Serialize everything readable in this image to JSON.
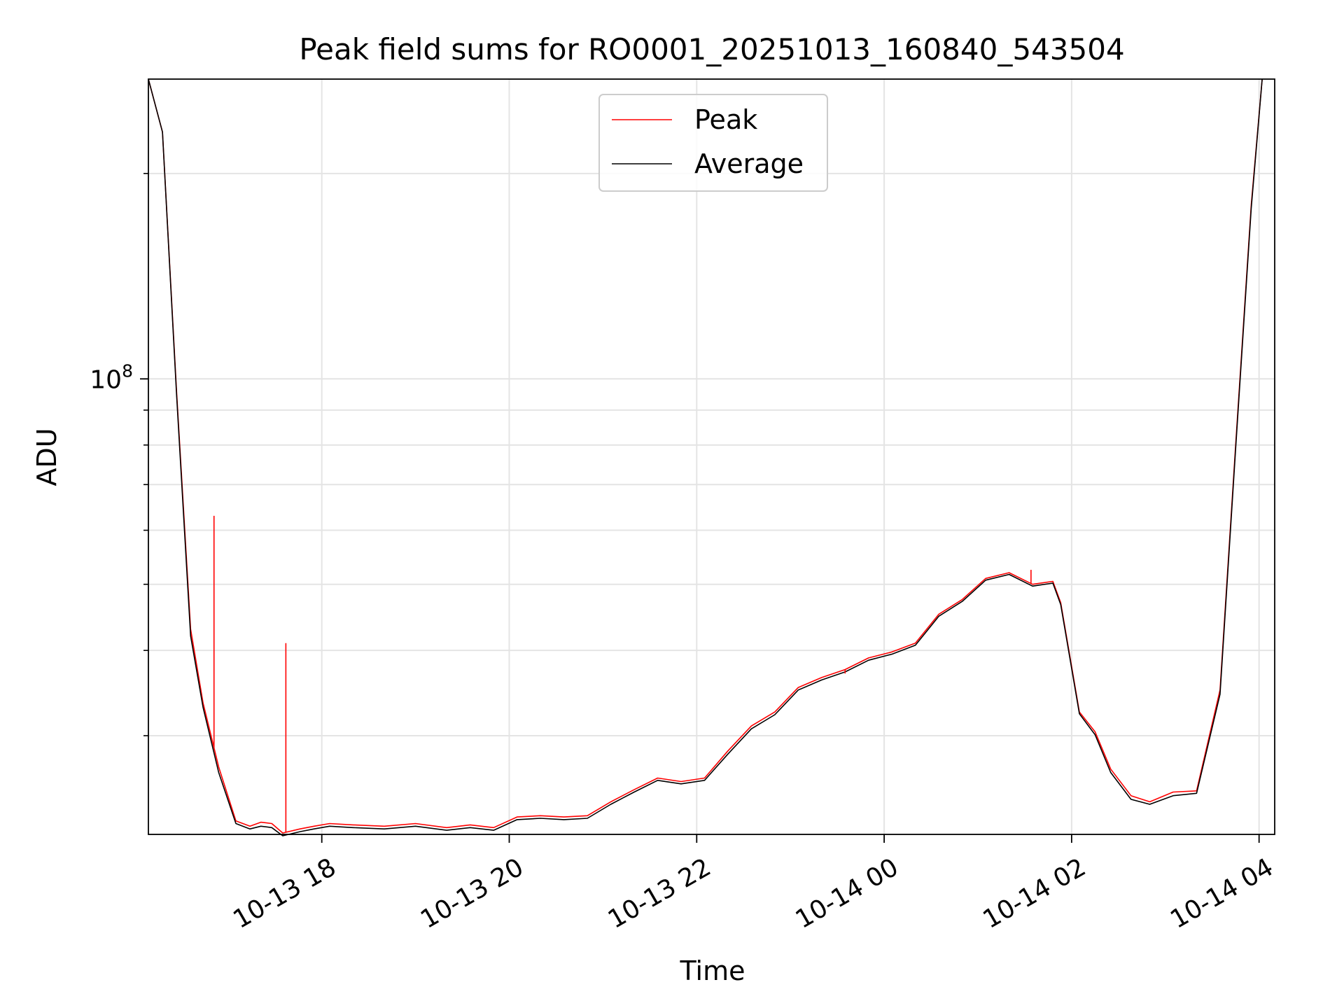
{
  "chart_data": {
    "type": "line",
    "title": "Peak field sums for RO0001_20251013_160840_543504",
    "xlabel": "Time",
    "ylabel": "ADU",
    "yscale": "log",
    "xlim": [
      "2025-10-13 16:09",
      "2025-10-14 04:10"
    ],
    "ylim": [
      21500000,
      275000000
    ],
    "x_ticks": [
      {
        "value": "2025-10-13 18:00",
        "label": "10-13 18"
      },
      {
        "value": "2025-10-13 20:00",
        "label": "10-13 20"
      },
      {
        "value": "2025-10-13 22:00",
        "label": "10-13 22"
      },
      {
        "value": "2025-10-14 00:00",
        "label": "10-14 00"
      },
      {
        "value": "2025-10-14 02:00",
        "label": "10-14 02"
      },
      {
        "value": "2025-10-14 04:00",
        "label": "10-14 04"
      }
    ],
    "y_ticks": [
      {
        "value": 100000000,
        "base": "10",
        "exponent": "8"
      }
    ],
    "grid": true,
    "legend_position": "top-center",
    "series": [
      {
        "name": "Peak",
        "color": "#ff0000",
        "x": [
          "2025-10-13 16:09",
          "2025-10-13 16:18",
          "2025-10-13 16:27",
          "2025-10-13 16:36",
          "2025-10-13 16:44",
          "2025-10-13 16:54",
          "2025-10-13 17:05",
          "2025-10-13 17:14",
          "2025-10-13 17:21",
          "2025-10-13 17:28",
          "2025-10-13 17:35",
          "2025-10-13 17:46",
          "2025-10-13 17:55",
          "2025-10-13 18:05",
          "2025-10-13 18:20",
          "2025-10-13 18:40",
          "2025-10-13 19:00",
          "2025-10-13 19:20",
          "2025-10-13 19:35",
          "2025-10-13 19:50",
          "2025-10-13 20:05",
          "2025-10-13 20:20",
          "2025-10-13 20:35",
          "2025-10-13 20:50",
          "2025-10-13 21:05",
          "2025-10-13 21:20",
          "2025-10-13 21:35",
          "2025-10-13 21:50",
          "2025-10-13 22:05",
          "2025-10-13 22:20",
          "2025-10-13 22:35",
          "2025-10-13 22:50",
          "2025-10-13 23:05",
          "2025-10-13 23:20",
          "2025-10-13 23:35",
          "2025-10-13 23:50",
          "2025-10-14 00:05",
          "2025-10-14 00:20",
          "2025-10-14 00:35",
          "2025-10-14 00:50",
          "2025-10-14 01:05",
          "2025-10-14 01:20",
          "2025-10-14 01:35",
          "2025-10-14 01:48",
          "2025-10-14 01:53",
          "2025-10-14 02:05",
          "2025-10-14 02:15",
          "2025-10-14 02:25",
          "2025-10-14 02:38",
          "2025-10-14 02:50",
          "2025-10-14 03:05",
          "2025-10-14 03:20",
          "2025-10-14 03:35",
          "2025-10-14 03:45",
          "2025-10-14 03:55",
          "2025-10-14 04:02"
        ],
        "y": [
          275000000,
          230000000,
          96000000,
          43000000,
          33500000,
          27000000,
          22500000,
          22100000,
          22400000,
          22300000,
          21600000,
          21900000,
          22100000,
          22300000,
          22200000,
          22100000,
          22300000,
          22000000,
          22200000,
          22000000,
          22800000,
          22900000,
          22800000,
          22900000,
          24000000,
          25000000,
          26000000,
          25700000,
          26000000,
          28500000,
          31000000,
          32500000,
          35300000,
          36500000,
          37500000,
          39000000,
          39800000,
          41000000,
          45200000,
          47500000,
          51000000,
          52000000,
          50000000,
          50500000,
          47000000,
          32500000,
          30400000,
          26800000,
          24500000,
          24000000,
          24800000,
          24900000,
          35000000,
          80000000,
          180000000,
          275000000
        ]
      },
      {
        "name": "Average",
        "color": "#000000",
        "x": [
          "2025-10-13 16:09",
          "2025-10-13 16:18",
          "2025-10-13 16:27",
          "2025-10-13 16:36",
          "2025-10-13 16:44",
          "2025-10-13 16:54",
          "2025-10-13 17:05",
          "2025-10-13 17:14",
          "2025-10-13 17:21",
          "2025-10-13 17:28",
          "2025-10-13 17:35",
          "2025-10-13 17:46",
          "2025-10-13 17:55",
          "2025-10-13 18:05",
          "2025-10-13 18:20",
          "2025-10-13 18:40",
          "2025-10-13 19:00",
          "2025-10-13 19:20",
          "2025-10-13 19:35",
          "2025-10-13 19:50",
          "2025-10-13 20:05",
          "2025-10-13 20:20",
          "2025-10-13 20:35",
          "2025-10-13 20:50",
          "2025-10-13 21:05",
          "2025-10-13 21:20",
          "2025-10-13 21:35",
          "2025-10-13 21:50",
          "2025-10-13 22:05",
          "2025-10-13 22:20",
          "2025-10-13 22:35",
          "2025-10-13 22:50",
          "2025-10-13 23:05",
          "2025-10-13 23:20",
          "2025-10-13 23:35",
          "2025-10-13 23:50",
          "2025-10-14 00:05",
          "2025-10-14 00:20",
          "2025-10-14 00:35",
          "2025-10-14 00:50",
          "2025-10-14 01:05",
          "2025-10-14 01:20",
          "2025-10-14 01:35",
          "2025-10-14 01:48",
          "2025-10-14 01:53",
          "2025-10-14 02:05",
          "2025-10-14 02:15",
          "2025-10-14 02:25",
          "2025-10-14 02:38",
          "2025-10-14 02:50",
          "2025-10-14 03:05",
          "2025-10-14 03:20",
          "2025-10-14 03:35",
          "2025-10-14 03:45",
          "2025-10-14 03:55",
          "2025-10-14 04:02"
        ],
        "y": [
          275000000,
          230000000,
          95000000,
          42000000,
          33000000,
          26500000,
          22300000,
          21900000,
          22100000,
          22000000,
          21400000,
          21700000,
          21900000,
          22100000,
          22000000,
          21900000,
          22100000,
          21800000,
          22000000,
          21800000,
          22600000,
          22700000,
          22600000,
          22700000,
          23800000,
          24800000,
          25800000,
          25500000,
          25800000,
          28200000,
          30700000,
          32200000,
          35000000,
          36200000,
          37200000,
          38700000,
          39500000,
          40700000,
          44900000,
          47200000,
          50700000,
          51700000,
          49700000,
          50200000,
          46700000,
          32300000,
          30100000,
          26500000,
          24200000,
          23800000,
          24500000,
          24700000,
          34500000,
          79000000,
          178000000,
          275000000
        ]
      }
    ],
    "spikes": [
      {
        "time": "2025-10-13 17:37",
        "value": 41000000,
        "series": "Peak"
      },
      {
        "time": "2025-10-13 16:51",
        "value": 63000000,
        "series": "Peak"
      },
      {
        "time": "2025-10-13 23:35",
        "value": 37000000,
        "series": "Peak"
      },
      {
        "time": "2025-10-14 01:34",
        "value": 52500000,
        "series": "Peak"
      }
    ]
  }
}
